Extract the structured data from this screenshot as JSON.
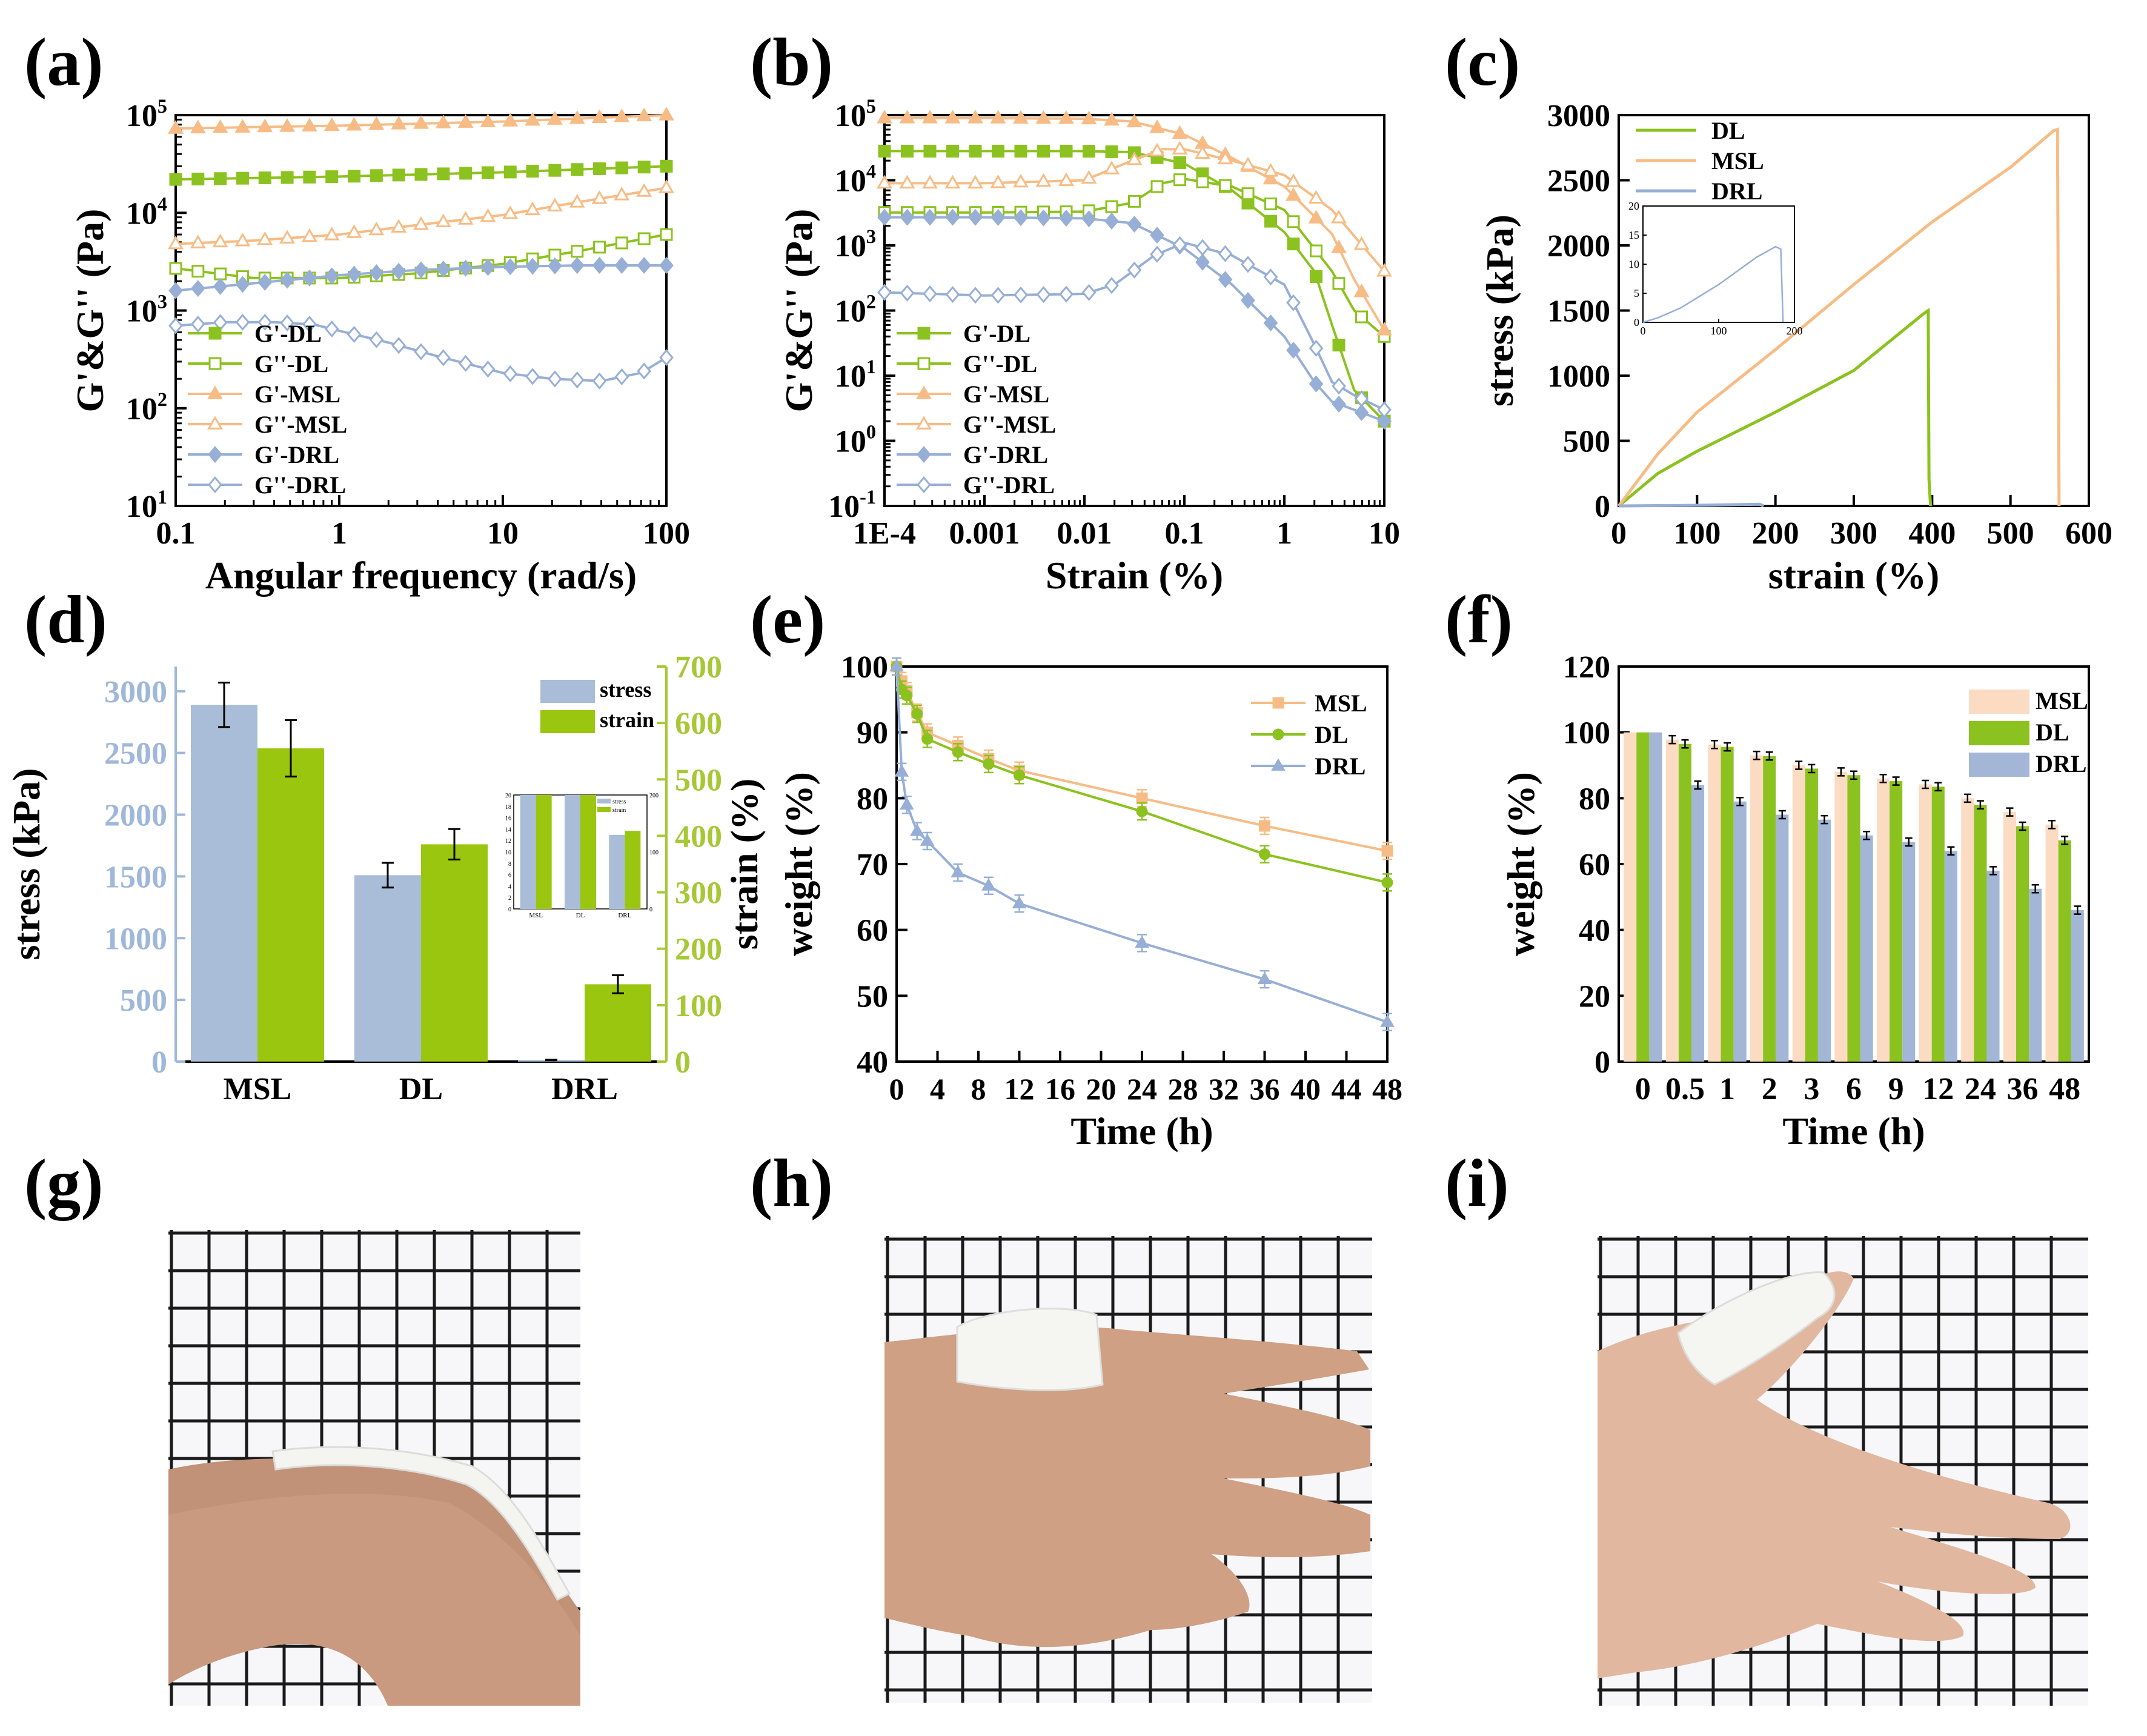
{
  "colors": {
    "DL": "#8cc21f",
    "MSL": "#f7bc85",
    "DRL": "#97afd6",
    "stress_bar": "#a9bcd8",
    "strain_bar": "#9bc60f",
    "msl_bar": "#fbdcc2",
    "dl_bar": "#8cc21f",
    "drl_bar": "#a3b6d6",
    "strain_axis": "#a7c836",
    "stress_axis": "#9fb7d9"
  },
  "panels": {
    "a": "(a)",
    "b": "(b)",
    "c": "(c)",
    "d": "(d)",
    "e": "(e)",
    "f": "(f)",
    "g": "(g)",
    "h": "(h)",
    "i": "(i)"
  },
  "chart_data": [
    {
      "id": "a",
      "type": "line",
      "xscale": "log",
      "yscale": "log",
      "xlim": [
        0.1,
        100
      ],
      "ylim": [
        10,
        100000
      ],
      "xlabel": "Angular frequency (rad/s)",
      "ylabel": "G'&G'' (Pa)",
      "xticks": [
        "0.1",
        "1",
        "10",
        "100"
      ],
      "yticks": [
        "10^1",
        "10^2",
        "10^3",
        "10^4",
        "10^5"
      ],
      "legend_position": "bottom-left",
      "series": [
        {
          "name": "G'-DL",
          "color": "DL",
          "marker": "square-filled",
          "x": [
            0.1,
            1,
            10,
            100
          ],
          "y": [
            22000,
            23500,
            26000,
            30000
          ]
        },
        {
          "name": "G''-DL",
          "color": "DL",
          "marker": "square-open",
          "x": [
            0.1,
            0.3,
            1,
            3,
            10,
            30,
            100
          ],
          "y": [
            2700,
            2150,
            2150,
            2400,
            3000,
            4100,
            6000
          ]
        },
        {
          "name": "G'-MSL",
          "color": "MSL",
          "marker": "triangle-filled",
          "x": [
            0.1,
            1,
            10,
            100
          ],
          "y": [
            73000,
            78000,
            86000,
            100000
          ]
        },
        {
          "name": "G''-MSL",
          "color": "MSL",
          "marker": "triangle-open",
          "x": [
            0.1,
            0.3,
            1,
            3,
            10,
            30,
            100
          ],
          "y": [
            4800,
            5200,
            6000,
            7500,
            9500,
            13000,
            18000
          ]
        },
        {
          "name": "G'-DRL",
          "color": "DRL",
          "marker": "diamond-filled",
          "x": [
            0.1,
            0.3,
            1,
            3,
            10,
            30,
            100
          ],
          "y": [
            1600,
            1900,
            2300,
            2600,
            2800,
            2900,
            2900
          ]
        },
        {
          "name": "G''-DRL",
          "color": "DRL",
          "marker": "diamond-open",
          "x": [
            0.1,
            0.2,
            0.4,
            0.7,
            1,
            2,
            4,
            10,
            20,
            40,
            70,
            100
          ],
          "y": [
            700,
            760,
            760,
            720,
            620,
            470,
            340,
            230,
            200,
            190,
            230,
            330
          ]
        }
      ]
    },
    {
      "id": "b",
      "type": "line",
      "xscale": "log",
      "yscale": "log",
      "xlim": [
        0.0001,
        10
      ],
      "ylim": [
        0.1,
        100000
      ],
      "xlabel": "Strain (%)",
      "ylabel": "G'&G'' (Pa)",
      "xticks": [
        "1E-4",
        "0.001",
        "0.01",
        "0.1",
        "1",
        "10"
      ],
      "yticks": [
        "10^-1",
        "10^0",
        "10^1",
        "10^2",
        "10^3",
        "10^4",
        "10^5"
      ],
      "legend_position": "bottom-left",
      "series": [
        {
          "name": "G'-DL",
          "color": "DL",
          "marker": "square-filled",
          "x": [
            0.0001,
            0.001,
            0.01,
            0.03,
            0.1,
            0.3,
            1,
            2,
            3,
            5,
            10
          ],
          "y": [
            28000,
            28000,
            28000,
            27000,
            18000,
            7000,
            1600,
            400,
            60,
            6,
            2
          ]
        },
        {
          "name": "G''-DL",
          "color": "DL",
          "marker": "square-open",
          "x": [
            0.0001,
            0.001,
            0.01,
            0.03,
            0.06,
            0.1,
            0.3,
            1,
            3,
            5,
            10
          ],
          "y": [
            3200,
            3200,
            3300,
            4500,
            9000,
            10500,
            8000,
            3500,
            400,
            100,
            40
          ]
        },
        {
          "name": "G'-MSL",
          "color": "MSL",
          "marker": "triangle-filled",
          "x": [
            0.0001,
            0.001,
            0.01,
            0.03,
            0.1,
            0.3,
            1,
            3,
            5,
            10
          ],
          "y": [
            90000,
            90000,
            88000,
            80000,
            50000,
            22000,
            8000,
            1500,
            300,
            50
          ]
        },
        {
          "name": "G''-MSL",
          "color": "MSL",
          "marker": "triangle-open",
          "x": [
            0.0001,
            0.001,
            0.01,
            0.03,
            0.06,
            0.1,
            0.3,
            1,
            3,
            10
          ],
          "y": [
            9000,
            9000,
            10000,
            20000,
            30000,
            30000,
            20000,
            12000,
            3500,
            400
          ]
        },
        {
          "name": "G'-DRL",
          "color": "DRL",
          "marker": "diamond-filled",
          "x": [
            0.0001,
            0.001,
            0.01,
            0.03,
            0.1,
            0.3,
            1,
            2,
            3,
            5,
            10
          ],
          "y": [
            2700,
            2700,
            2600,
            2200,
            900,
            250,
            40,
            8,
            4,
            3,
            2
          ]
        },
        {
          "name": "G''-DRL",
          "color": "DRL",
          "marker": "diamond-open",
          "x": [
            0.0001,
            0.001,
            0.01,
            0.02,
            0.05,
            0.1,
            0.3,
            1,
            2,
            3,
            5,
            10
          ],
          "y": [
            190,
            170,
            180,
            250,
            700,
            1100,
            700,
            250,
            30,
            8,
            5,
            3
          ]
        }
      ]
    },
    {
      "id": "c",
      "type": "line",
      "xlim": [
        0,
        600
      ],
      "ylim": [
        0,
        3000
      ],
      "xlabel": "strain (%)",
      "ylabel": "stress (kPa)",
      "xticks": [
        "0",
        "100",
        "200",
        "300",
        "400",
        "500",
        "600"
      ],
      "yticks": [
        "0",
        "500",
        "1000",
        "1500",
        "2000",
        "2500",
        "3000"
      ],
      "legend_position": "top-left",
      "series": [
        {
          "name": "DL",
          "color": "DL",
          "x": [
            0,
            50,
            100,
            200,
            300,
            390,
            395,
            396,
            398
          ],
          "y": [
            0,
            250,
            420,
            720,
            1040,
            1480,
            1500,
            200,
            0
          ]
        },
        {
          "name": "MSL",
          "color": "MSL",
          "x": [
            0,
            50,
            100,
            200,
            300,
            400,
            500,
            555,
            560,
            562
          ],
          "y": [
            0,
            400,
            720,
            1200,
            1700,
            2180,
            2600,
            2880,
            2890,
            0
          ]
        },
        {
          "name": "DRL",
          "color": "DRL",
          "x": [
            0,
            100,
            180,
            185
          ],
          "y": [
            0,
            5,
            13,
            0
          ]
        }
      ],
      "inset": {
        "xlim": [
          0,
          200
        ],
        "ylim": [
          0,
          20
        ],
        "xticks": [
          "0",
          "100",
          "200"
        ],
        "yticks": [
          "0",
          "5",
          "10",
          "15",
          "20"
        ],
        "series": [
          {
            "name": "DRL",
            "x": [
              0,
              20,
              50,
              100,
              150,
              175,
              182,
              185
            ],
            "y": [
              0,
              0.8,
              2.5,
              6.5,
              11.2,
              13,
              12.6,
              0
            ]
          }
        ]
      }
    },
    {
      "id": "d",
      "type": "bar",
      "categories": [
        "MSL",
        "DL",
        "DRL"
      ],
      "series": [
        {
          "name": "stress",
          "axis": "left",
          "values": [
            2890,
            1510,
            13
          ],
          "errors": [
            180,
            100,
            2
          ]
        },
        {
          "name": "strain",
          "axis": "right",
          "values": [
            555,
            385,
            137
          ],
          "errors": [
            50,
            27,
            16
          ]
        }
      ],
      "ylabel": "stress (kPa)",
      "y2label": "strain (%)",
      "ylim": [
        0,
        3200
      ],
      "y2lim": [
        0,
        700
      ],
      "yticks": [
        "0",
        "500",
        "1000",
        "1500",
        "2000",
        "2500",
        "3000"
      ],
      "y2ticks": [
        "0",
        "100",
        "200",
        "300",
        "400",
        "500",
        "600",
        "700"
      ],
      "legend_position": "top-right",
      "inset": {
        "ylim": [
          0,
          20
        ],
        "y2lim": [
          0,
          200
        ],
        "yticks": [
          "0",
          "2",
          "4",
          "6",
          "8",
          "10",
          "12",
          "14",
          "16",
          "18",
          "20"
        ],
        "y2ticks": [
          "0",
          "100",
          "200"
        ],
        "categories": [
          "MSL",
          "DL",
          "DRL"
        ],
        "stress": [
          2890,
          1510,
          13
        ],
        "strain": [
          555,
          385,
          137
        ]
      }
    },
    {
      "id": "e",
      "type": "line",
      "xlim": [
        0,
        48
      ],
      "ylim": [
        40,
        100
      ],
      "xlabel": "Time (h)",
      "ylabel": "weight (%)",
      "xticks": [
        "0",
        "4",
        "8",
        "12",
        "16",
        "20",
        "24",
        "28",
        "32",
        "36",
        "40",
        "44",
        "48"
      ],
      "yticks": [
        "40",
        "50",
        "60",
        "70",
        "80",
        "90",
        "100"
      ],
      "legend_position": "top-right",
      "series": [
        {
          "name": "MSL",
          "color": "MSL",
          "x": [
            0,
            0.5,
            1,
            2,
            3,
            6,
            9,
            12,
            24,
            36,
            48
          ],
          "y": [
            100,
            97.8,
            96.3,
            93,
            90,
            88,
            86,
            84.2,
            80,
            75.8,
            72
          ]
        },
        {
          "name": "DL",
          "color": "DL",
          "x": [
            0,
            0.5,
            1,
            2,
            3,
            6,
            9,
            12,
            24,
            36,
            48
          ],
          "y": [
            100,
            96.5,
            95.6,
            92.8,
            89,
            87,
            85.2,
            83.5,
            78,
            71.5,
            67.2
          ]
        },
        {
          "name": "DRL",
          "color": "DRL",
          "x": [
            0,
            0.5,
            1,
            2,
            3,
            6,
            9,
            12,
            24,
            36,
            48
          ],
          "y": [
            100,
            84,
            79,
            75,
            73.5,
            68.7,
            66.7,
            64,
            58,
            52.5,
            46
          ]
        }
      ]
    },
    {
      "id": "f",
      "type": "bar",
      "categories": [
        "0",
        "0.5",
        "1",
        "2",
        "3",
        "6",
        "9",
        "12",
        "24",
        "36",
        "48"
      ],
      "xlabel": "Time (h)",
      "ylabel": "weight (%)",
      "ylim": [
        0,
        120
      ],
      "yticks": [
        "0",
        "20",
        "40",
        "60",
        "80",
        "100",
        "120"
      ],
      "legend_position": "top-right",
      "series": [
        {
          "name": "MSL",
          "color": "msl_bar",
          "values": [
            100,
            97.8,
            96.3,
            93,
            90,
            88,
            86,
            84.2,
            80,
            75.8,
            72
          ]
        },
        {
          "name": "DL",
          "color": "dl_bar",
          "values": [
            100,
            96.5,
            95.6,
            92.8,
            89,
            87,
            85.2,
            83.5,
            78,
            71.5,
            67.2
          ]
        },
        {
          "name": "DRL",
          "color": "drl_bar",
          "values": [
            100,
            84,
            79,
            75,
            73.5,
            68.7,
            66.7,
            64,
            58,
            52.5,
            46
          ]
        }
      ]
    }
  ]
}
